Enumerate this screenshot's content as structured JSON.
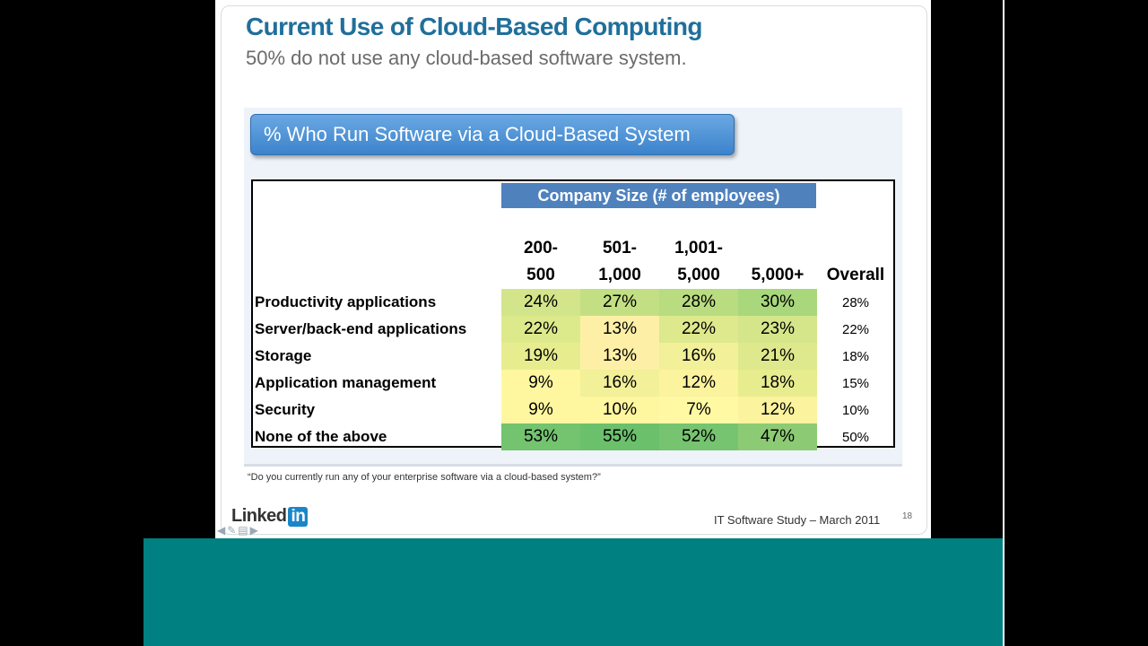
{
  "slide": {
    "title": "Current Use of Cloud-Based Computing",
    "subtitle": "50% do not use any cloud-based software system.",
    "panel_heading": "% Who Run Software via a Cloud-Based System",
    "company_size_header": "Company Size (# of employees)",
    "columns": [
      {
        "line1": "200-",
        "line2": "500"
      },
      {
        "line1": "501-",
        "line2": "1,000"
      },
      {
        "line1": "1,001-",
        "line2": "5,000"
      },
      {
        "line1": "",
        "line2": "5,000+"
      },
      {
        "line1": "",
        "line2": "Overall"
      }
    ],
    "rows": [
      {
        "label": "Productivity applications",
        "values": [
          "24%",
          "27%",
          "28%",
          "30%"
        ],
        "overall": "28%"
      },
      {
        "label": "Server/back-end applications",
        "values": [
          "22%",
          "13%",
          "22%",
          "23%"
        ],
        "overall": "22%"
      },
      {
        "label": "Storage",
        "values": [
          "19%",
          "13%",
          "16%",
          "21%"
        ],
        "overall": "18%"
      },
      {
        "label": "Application management",
        "values": [
          "9%",
          "16%",
          "12%",
          "18%"
        ],
        "overall": "15%"
      },
      {
        "label": "Security",
        "values": [
          "9%",
          "10%",
          "7%",
          "12%"
        ],
        "overall": "10%"
      },
      {
        "label": "None of the above",
        "values": [
          "53%",
          "55%",
          "52%",
          "47%"
        ],
        "overall": "50%"
      }
    ],
    "cell_colors": [
      [
        "#d3e58a",
        "#c3df83",
        "#b9dc80",
        "#a9d77c"
      ],
      [
        "#ddea8c",
        "#fdf0a6",
        "#dde98c",
        "#d5e68a"
      ],
      [
        "#e7ed8f",
        "#fdf0a6",
        "#f2f098",
        "#dde98c"
      ],
      [
        "#fff7a0",
        "#f2f098",
        "#fcf39e",
        "#e7ed8f"
      ],
      [
        "#fff7a0",
        "#fff6a0",
        "#fff9a4",
        "#fcf39e"
      ],
      [
        "#73c36f",
        "#6bc06c",
        "#76c46f",
        "#8ccb73"
      ]
    ],
    "footnote": "“Do you currently run any of your enterprise software via a cloud-based system?”",
    "footer": "IT Software Study – March 2011",
    "page_number": "18",
    "logo_text": "Linked",
    "logo_in": "in"
  },
  "colors": {
    "title": "#1f6f9b",
    "header_bar": "#4f81bd",
    "teal_band": "#008080"
  }
}
